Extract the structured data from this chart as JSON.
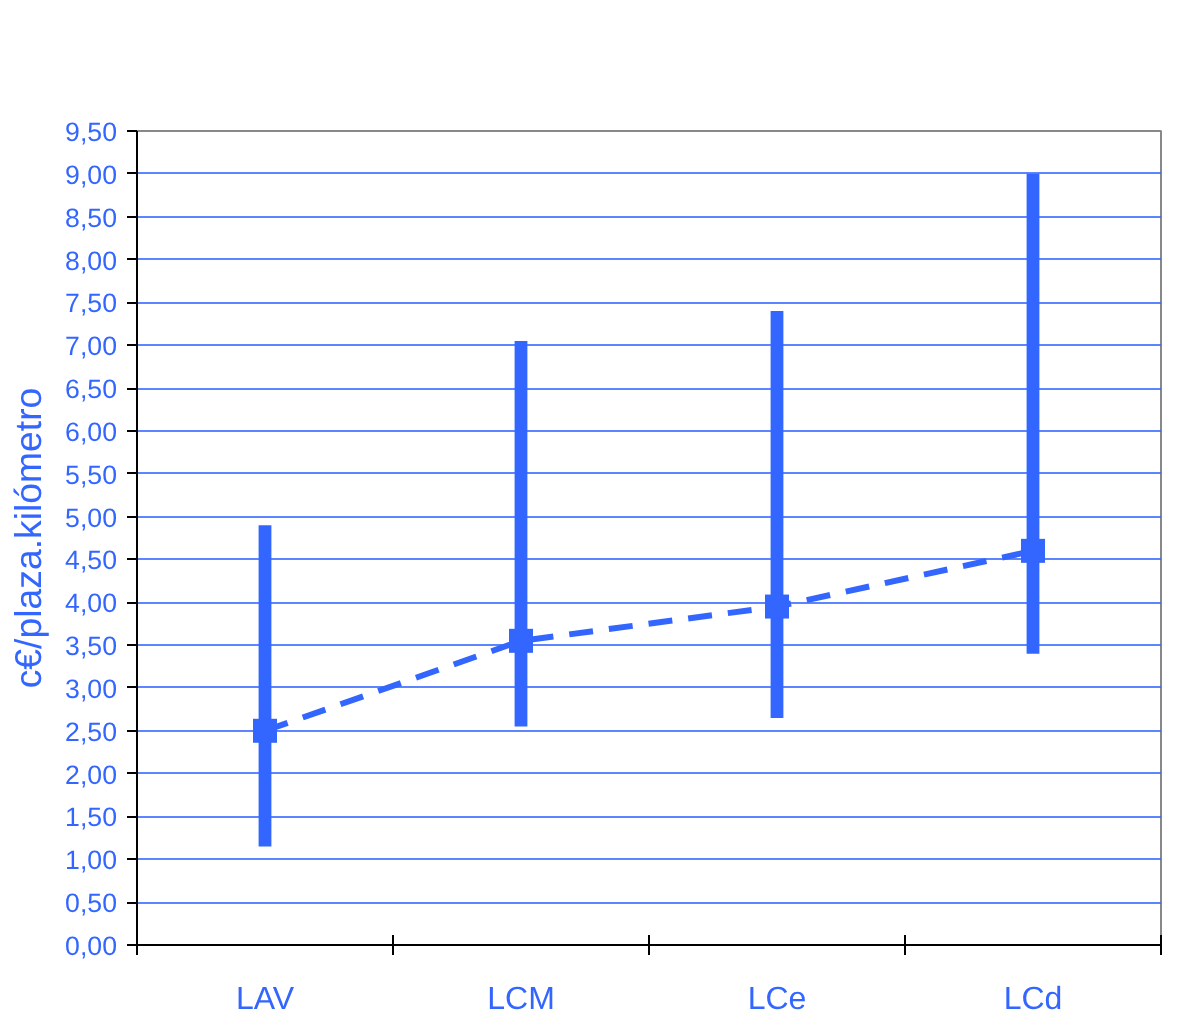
{
  "chart_data": {
    "type": "bar",
    "ylabel": "c€/plaza.kilómetro",
    "categories": [
      "LAV",
      "LCM",
      "LCe",
      "LCd"
    ],
    "series": [
      {
        "color": "#3366ff",
        "base": [
          1.15,
          2.55,
          2.65,
          3.4
        ],
        "values": [
          3.75,
          4.5,
          4.75,
          5.6
        ]
      },
      {
        "type": "line",
        "color": "#3366ff",
        "line_style": "dashed",
        "marker": "square",
        "values": [
          2.5,
          3.55,
          3.95,
          4.6
        ]
      }
    ],
    "ylim": [
      0,
      9.5
    ],
    "yticks": [
      {
        "value": 0,
        "label": "0,00"
      },
      {
        "value": 0.5,
        "label": "0,50"
      },
      {
        "value": 1,
        "label": "1,00"
      },
      {
        "value": 1.5,
        "label": "1,50"
      },
      {
        "value": 2,
        "label": "2,00"
      },
      {
        "value": 2.5,
        "label": "2,50"
      },
      {
        "value": 3,
        "label": "3,00"
      },
      {
        "value": 3.5,
        "label": "3,50"
      },
      {
        "value": 4,
        "label": "4,00"
      },
      {
        "value": 4.5,
        "label": "4,50"
      },
      {
        "value": 5,
        "label": "5,00"
      },
      {
        "value": 5.5,
        "label": "5,50"
      },
      {
        "value": 6,
        "label": "6,00"
      },
      {
        "value": 6.5,
        "label": "6,50"
      },
      {
        "value": 7,
        "label": "7,00"
      },
      {
        "value": 7.5,
        "label": "7,50"
      },
      {
        "value": 8,
        "label": "8,00"
      },
      {
        "value": 8.5,
        "label": "8,50"
      },
      {
        "value": 9,
        "label": "9,00"
      },
      {
        "value": 9.5,
        "label": "9,50"
      }
    ],
    "grid": "y"
  }
}
